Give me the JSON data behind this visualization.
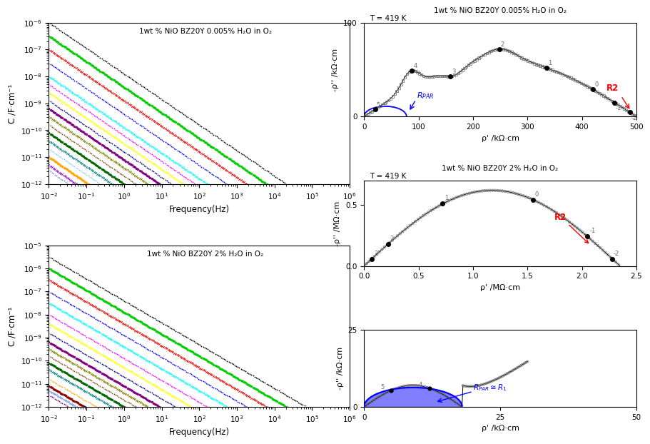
{
  "title_top_bode": "1wt % NiO BZ20Y 0.005% H₂O in O₂",
  "title_bot_bode": "1wt % NiO BZ20Y 2% H₂O in O₂",
  "ylabel_bode": "C /F·cm⁻¹",
  "xlabel_bode": "Frequency(Hz)",
  "nyq_top_title": "1wt % NiO BZ20Y 0.005% H₂O in O₂",
  "nyq_top_T": "T = 419 K",
  "nyq_top_xlabel": "ρ' /kΩ·cm",
  "nyq_top_ylabel": "-ρ'' /kΩ·cm",
  "nyq_bot_title": "1wt % NiO BZ20Y 2% H₂O in O₂",
  "nyq_bot_T": "T = 419 K",
  "nyq_bot_xlabel": "ρ' /MΩ·cm",
  "nyq_bot_ylabel": "-ρ'' /MΩ·cm",
  "nyq_ins_xlabel": "ρ' /kΩ·cm",
  "nyq_ins_ylabel": "-ρ'' /kΩ·cm",
  "colors_top": [
    "black",
    "#00cc00",
    "red",
    "#0000ff",
    "cyan",
    "magenta",
    "yellow",
    "navy",
    "purple",
    "#808000",
    "#8B4513",
    "#006400",
    "teal",
    "#87CEEB",
    "orange",
    "#9400D3",
    "#6495ED"
  ],
  "colors_bot": [
    "black",
    "#00cc00",
    "red",
    "#0000ff",
    "cyan",
    "magenta",
    "yellow",
    "navy",
    "purple",
    "#808000",
    "#8B4513",
    "#006400",
    "teal",
    "orange",
    "#8B0000",
    "#6495ED",
    "#800080"
  ],
  "c_starts_top": [
    -6.0,
    -6.5,
    -7.0,
    -7.5,
    -8.0,
    -8.3,
    -8.6,
    -8.9,
    -9.2,
    -9.5,
    -9.8,
    -10.1,
    -10.4,
    -10.7,
    -11.0,
    -11.3,
    -11.5
  ],
  "c_starts_bot": [
    -5.5,
    -6.0,
    -6.5,
    -7.0,
    -7.5,
    -8.0,
    -8.4,
    -8.8,
    -9.2,
    -9.5,
    -9.8,
    -10.1,
    -10.4,
    -10.8,
    -11.1,
    -11.3,
    -11.5
  ],
  "background": "#ffffff"
}
